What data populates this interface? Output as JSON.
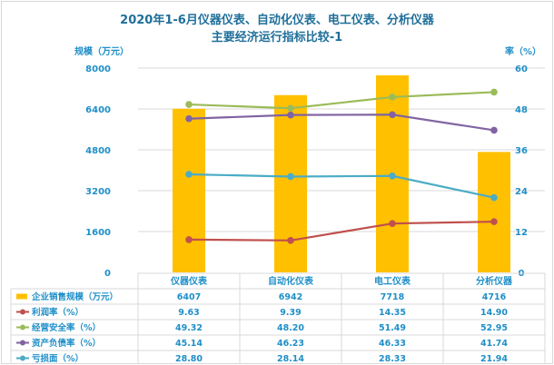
{
  "title_line1": "2020年1-6月仪器仪表、自动化仪表、电工仪表、分析仪器",
  "title_line2": "主要经济运行指标比较-1",
  "colors": {
    "bar": "#ffc000",
    "profit_rate": "#c0504d",
    "safety_rate": "#9bbb59",
    "debt_rate": "#8064a2",
    "loss_ratio": "#4bacc6",
    "axis_text": "#1f8fc8",
    "grid": "#d9d9d9"
  },
  "chart_data": {
    "type": "bar",
    "categories": [
      "仪器仪表",
      "自动化仪表",
      "电工仪表",
      "分析仪器"
    ],
    "left_axis": {
      "label": "规模（万元）",
      "ylim": [
        0,
        8000
      ],
      "ticks": [
        "0",
        "1600",
        "3200",
        "4800",
        "6400",
        "8000"
      ]
    },
    "right_axis": {
      "label": "率（%）",
      "ylim": [
        0,
        60
      ],
      "ticks": [
        "0",
        "12",
        "24",
        "36",
        "48",
        "60"
      ]
    },
    "grid": true,
    "legend": "data-table",
    "series": [
      {
        "name": "企业销售规模（万元）",
        "type": "bar",
        "axis": "left",
        "color_key": "bar",
        "values": [
          6407,
          6942,
          7718,
          4716
        ],
        "labels": [
          "6407",
          "6942",
          "7718",
          "4716"
        ]
      },
      {
        "name": "利润率（%）",
        "type": "line",
        "axis": "right",
        "color_key": "profit_rate",
        "values": [
          9.63,
          9.39,
          14.35,
          14.9
        ],
        "labels": [
          "9.63",
          "9.39",
          "14.35",
          "14.90"
        ]
      },
      {
        "name": "经营安全率（%）",
        "type": "line",
        "axis": "right",
        "color_key": "safety_rate",
        "values": [
          49.32,
          48.2,
          51.49,
          52.95
        ],
        "labels": [
          "49.32",
          "48.20",
          "51.49",
          "52.95"
        ]
      },
      {
        "name": "资产负债率（%）",
        "type": "line",
        "axis": "right",
        "color_key": "debt_rate",
        "values": [
          45.14,
          46.23,
          46.33,
          41.74
        ],
        "labels": [
          "45.14",
          "46.23",
          "46.33",
          "41.74"
        ]
      },
      {
        "name": "亏损面（%）",
        "type": "line",
        "axis": "right",
        "color_key": "loss_ratio",
        "values": [
          28.8,
          28.14,
          28.33,
          21.94
        ],
        "labels": [
          "28.80",
          "28.14",
          "28.33",
          "21.94"
        ]
      }
    ]
  }
}
